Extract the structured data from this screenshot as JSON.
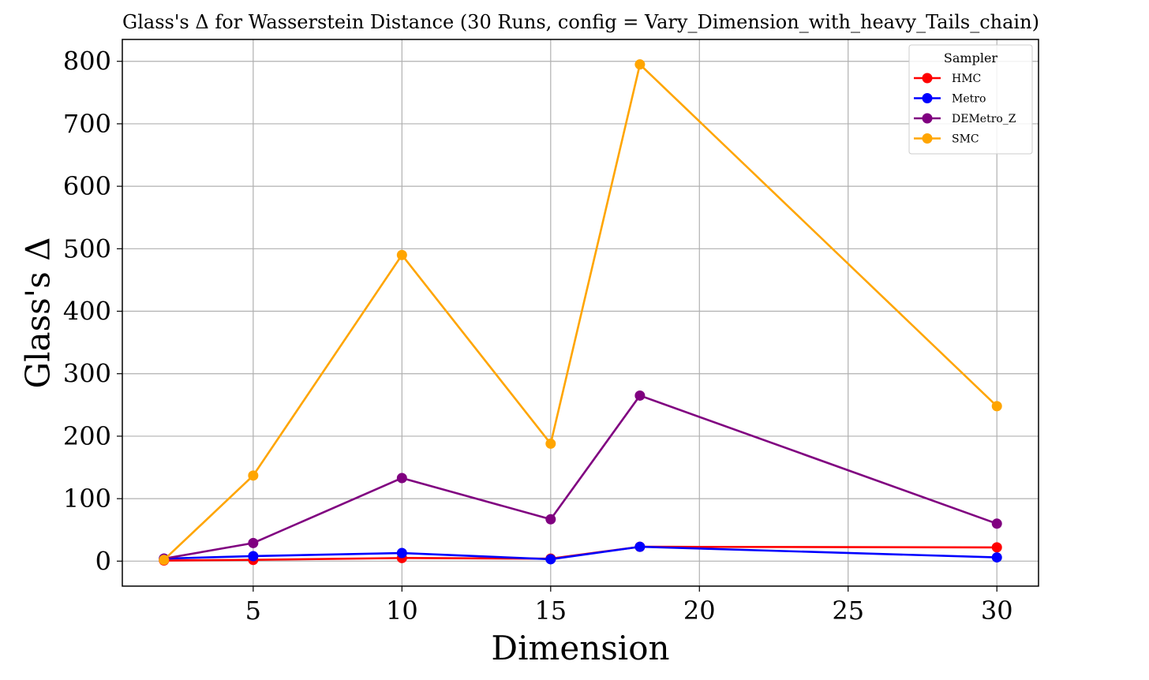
{
  "chart_data": {
    "type": "line",
    "title": "Glass's Δ for Wasserstein Distance (30 Runs, config = Vary_Dimension_with_heavy_Tails_chain)",
    "xlabel": "Dimension",
    "ylabel": "Glass's Δ",
    "x": [
      2,
      5,
      10,
      15,
      18,
      30
    ],
    "xlim": [
      0.6,
      31.4
    ],
    "ylim": [
      -40,
      835
    ],
    "xticks": [
      5,
      10,
      15,
      20,
      25,
      30
    ],
    "yticks": [
      0,
      100,
      200,
      300,
      400,
      500,
      600,
      700,
      800
    ],
    "grid": true,
    "legend": {
      "title": "Sampler",
      "position": "top-right"
    },
    "series": [
      {
        "name": "HMC",
        "color": "#ff0000",
        "values": [
          1,
          2,
          5,
          4,
          23,
          22
        ]
      },
      {
        "name": "Metro",
        "color": "#0000ff",
        "values": [
          4,
          8,
          13,
          3,
          23,
          6
        ]
      },
      {
        "name": "DEMetro_Z",
        "color": "#800080",
        "values": [
          4,
          29,
          133,
          67,
          265,
          60
        ]
      },
      {
        "name": "SMC",
        "color": "#ffa500",
        "values": [
          2,
          137,
          490,
          188,
          795,
          248
        ]
      }
    ]
  }
}
